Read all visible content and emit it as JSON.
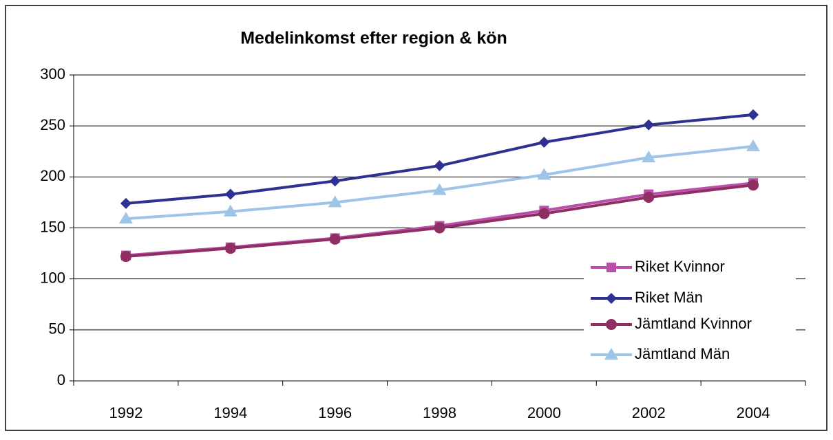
{
  "chart_data": {
    "type": "line",
    "title": "Medelinkomst efter region & kön",
    "categories": [
      "1992",
      "1994",
      "1996",
      "1998",
      "2000",
      "2002",
      "2004"
    ],
    "series": [
      {
        "name": "Riket Kvinnor",
        "color": "#b94fa8",
        "marker": "square",
        "values": [
          123,
          131,
          140,
          152,
          167,
          183,
          194
        ]
      },
      {
        "name": "Riket Män",
        "color": "#2e3192",
        "marker": "diamond",
        "values": [
          174,
          183,
          196,
          211,
          234,
          251,
          261
        ]
      },
      {
        "name": "Jämtland Kvinnor",
        "color": "#8e2e62",
        "marker": "circle",
        "values": [
          122,
          130,
          139,
          150,
          164,
          180,
          192
        ]
      },
      {
        "name": "Jämtland Män",
        "color": "#9ec4e8",
        "marker": "triangle",
        "values": [
          159,
          166,
          175,
          187,
          202,
          219,
          230
        ]
      }
    ],
    "ylim": [
      0,
      300
    ],
    "yticks": [
      0,
      50,
      100,
      150,
      200,
      250,
      300
    ],
    "grid": true,
    "legend": "lower right"
  }
}
